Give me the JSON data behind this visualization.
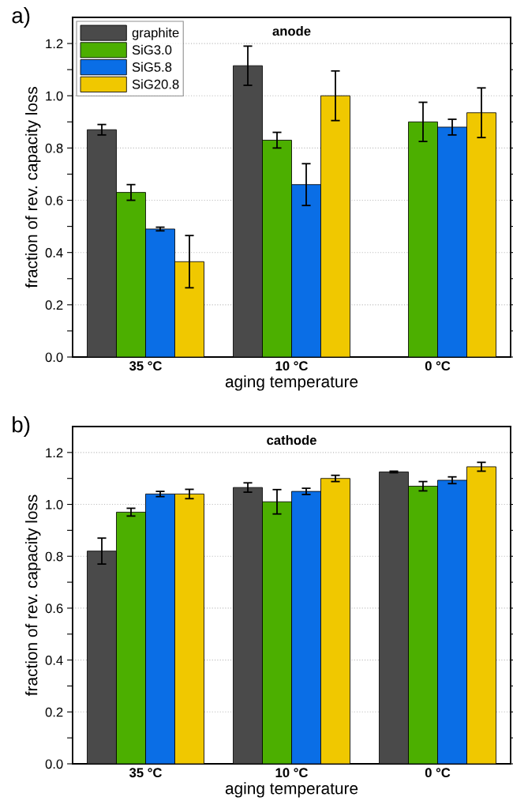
{
  "chart_data": [
    {
      "type": "bar",
      "title": "anode",
      "xlabel": "aging temperature",
      "ylabel": "fraction of rev. capacity loss",
      "annotations": [
        "a)"
      ],
      "categories": [
        "35 °C",
        "10 °C",
        "0 °C"
      ],
      "series": [
        {
          "name": "graphite",
          "color": "#4a4a4a",
          "values": [
            0.87,
            1.115,
            null
          ],
          "errors": [
            0.02,
            0.075,
            null
          ]
        },
        {
          "name": "SiG3.0",
          "color": "#4caf00",
          "values": [
            0.63,
            0.83,
            0.9
          ],
          "errors": [
            0.03,
            0.03,
            0.075
          ]
        },
        {
          "name": "SiG5.8",
          "color": "#0a6ee6",
          "values": [
            0.49,
            0.66,
            0.88
          ],
          "errors": [
            0.007,
            0.08,
            0.03
          ]
        },
        {
          "name": "SiG20.8",
          "color": "#f0c800",
          "values": [
            0.365,
            1.0,
            0.935
          ],
          "errors": [
            0.1,
            0.095,
            0.095
          ]
        }
      ],
      "ylim": [
        0,
        1.3
      ],
      "yticks": [
        {
          "value": 0.0,
          "label": "0.0"
        },
        {
          "value": 0.1,
          "label": null
        },
        {
          "value": 0.2,
          "label": "0.2"
        },
        {
          "value": 0.3,
          "label": null
        },
        {
          "value": 0.4,
          "label": "0.4"
        },
        {
          "value": 0.5,
          "label": null
        },
        {
          "value": 0.6,
          "label": "0.6"
        },
        {
          "value": 0.7,
          "label": null
        },
        {
          "value": 0.8,
          "label": "0.8"
        },
        {
          "value": 0.9,
          "label": null
        },
        {
          "value": 1.0,
          "label": "1.0"
        },
        {
          "value": 1.1,
          "label": null
        },
        {
          "value": 1.2,
          "label": "1.2"
        }
      ],
      "grid": "y",
      "legend": "top left"
    },
    {
      "type": "bar",
      "title": "cathode",
      "xlabel": "aging temperature",
      "ylabel": "fraction of rev. capacity loss",
      "annotations": [
        "b)"
      ],
      "categories": [
        "35 °C",
        "10 °C",
        "0 °C"
      ],
      "series": [
        {
          "color": "#4a4a4a",
          "values": [
            0.82,
            1.065,
            1.125
          ],
          "errors": [
            0.05,
            0.018,
            0.003
          ]
        },
        {
          "color": "#4caf00",
          "values": [
            0.97,
            1.01,
            1.07
          ],
          "errors": [
            0.015,
            0.047,
            0.018
          ]
        },
        {
          "color": "#0a6ee6",
          "values": [
            1.04,
            1.05,
            1.093
          ],
          "errors": [
            0.01,
            0.012,
            0.013
          ]
        },
        {
          "color": "#f0c800",
          "values": [
            1.04,
            1.1,
            1.145
          ],
          "errors": [
            0.018,
            0.012,
            0.017
          ]
        }
      ],
      "ylim": [
        0,
        1.3
      ],
      "yticks": [
        {
          "value": 0.0,
          "label": "0.0"
        },
        {
          "value": 0.1,
          "label": null
        },
        {
          "value": 0.2,
          "label": "0.2"
        },
        {
          "value": 0.3,
          "label": null
        },
        {
          "value": 0.4,
          "label": "0.4"
        },
        {
          "value": 0.5,
          "label": null
        },
        {
          "value": 0.6,
          "label": "0.6"
        },
        {
          "value": 0.7,
          "label": null
        },
        {
          "value": 0.8,
          "label": "0.8"
        },
        {
          "value": 0.9,
          "label": null
        },
        {
          "value": 1.0,
          "label": "1.0"
        },
        {
          "value": 1.1,
          "label": null
        },
        {
          "value": 1.2,
          "label": "1.2"
        }
      ],
      "grid": "y",
      "legend": false
    }
  ]
}
